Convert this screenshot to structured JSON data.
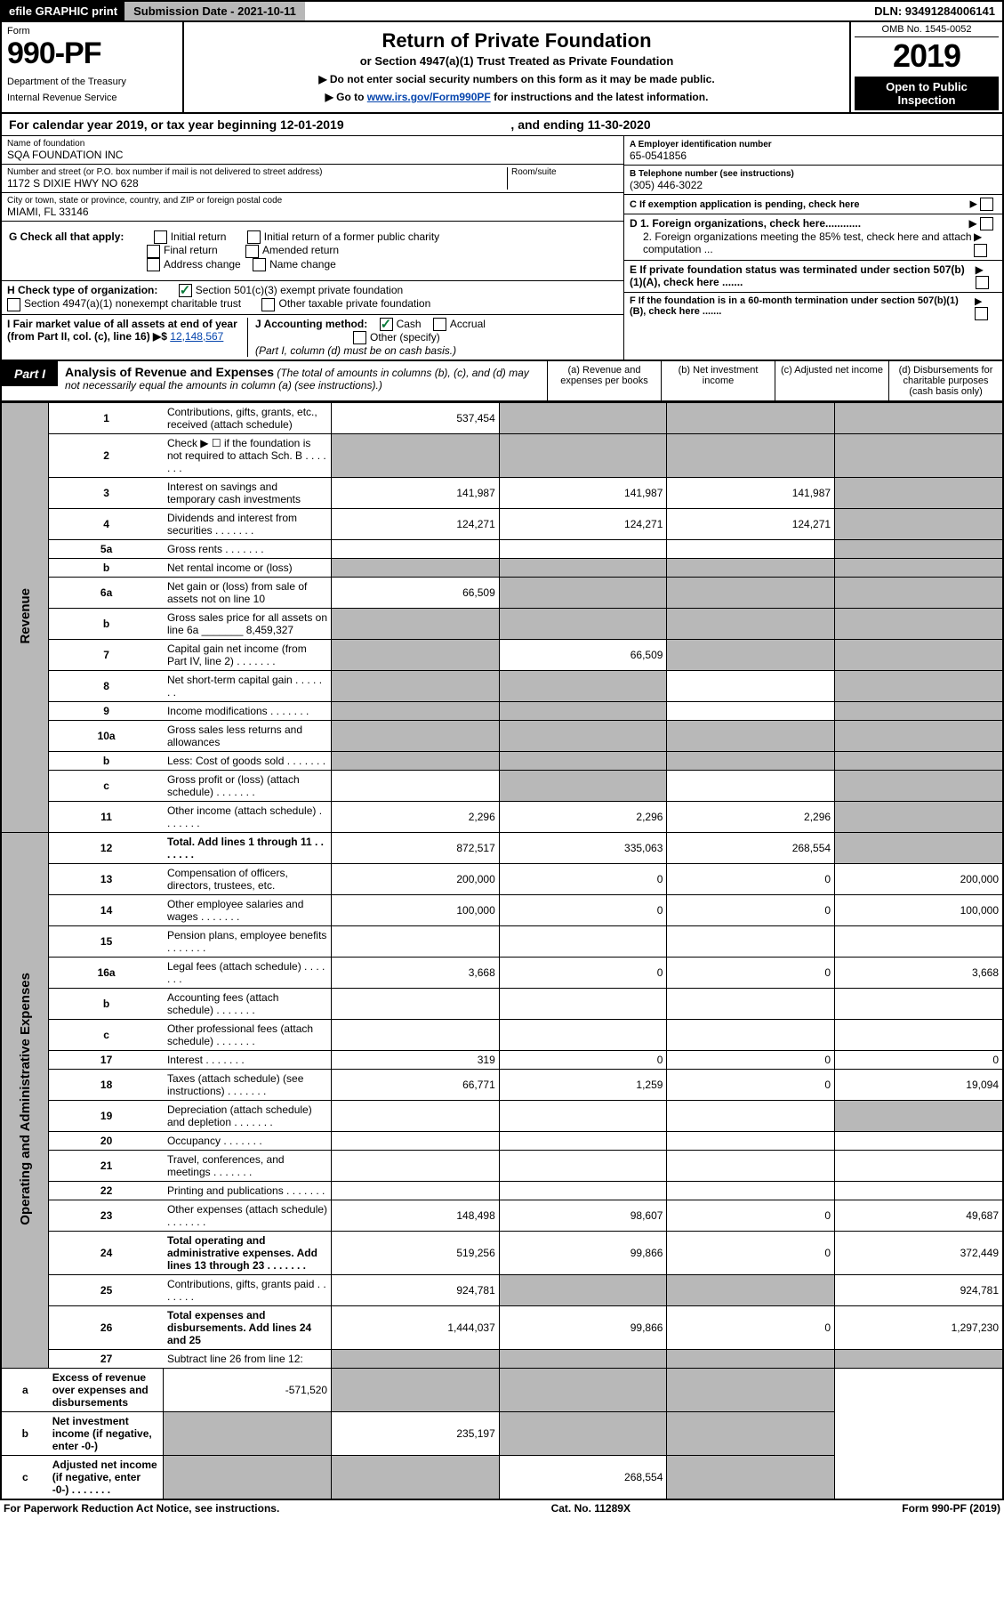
{
  "topbar": {
    "efile": "efile GRAPHIC print",
    "submission": "Submission Date - 2021-10-11",
    "dln": "DLN: 93491284006141"
  },
  "header": {
    "form_word": "Form",
    "form_number": "990-PF",
    "dept": "Department of the Treasury",
    "irs": "Internal Revenue Service",
    "title": "Return of Private Foundation",
    "subtitle": "or Section 4947(a)(1) Trust Treated as Private Foundation",
    "instr1": "▶ Do not enter social security numbers on this form as it may be made public.",
    "instr2_pre": "▶ Go to ",
    "instr2_link": "www.irs.gov/Form990PF",
    "instr2_post": " for instructions and the latest information.",
    "omb": "OMB No. 1545-0052",
    "year": "2019",
    "openpub": "Open to Public Inspection"
  },
  "calendar": {
    "text_pre": "For calendar year 2019, or tax year beginning ",
    "begin": "12-01-2019",
    "text_mid": " , and ending ",
    "end": "11-30-2020"
  },
  "info": {
    "name_label": "Name of foundation",
    "name": "SQA FOUNDATION INC",
    "addr_label": "Number and street (or P.O. box number if mail is not delivered to street address)",
    "addr": "1172 S DIXIE HWY NO 628",
    "room_label": "Room/suite",
    "city_label": "City or town, state or province, country, and ZIP or foreign postal code",
    "city": "MIAMI, FL  33146",
    "ein_label": "A Employer identification number",
    "ein": "65-0541856",
    "tel_label": "B Telephone number (see instructions)",
    "tel": "(305) 446-3022",
    "c_label": "C If exemption application is pending, check here",
    "d1": "D 1. Foreign organizations, check here............",
    "d2": "2. Foreign organizations meeting the 85% test, check here and attach computation ...",
    "e_label": "E  If private foundation status was terminated under section 507(b)(1)(A), check here .......",
    "f_label": "F  If the foundation is in a 60-month termination under section 507(b)(1)(B), check here .......",
    "g_label": "G Check all that apply:",
    "g_opts": [
      "Initial return",
      "Initial return of a former public charity",
      "Final return",
      "Amended return",
      "Address change",
      "Name change"
    ],
    "h_label": "H Check type of organization:",
    "h_opts": [
      "Section 501(c)(3) exempt private foundation",
      "Section 4947(a)(1) nonexempt charitable trust",
      "Other taxable private foundation"
    ],
    "i_label": "I Fair market value of all assets at end of year (from Part II, col. (c), line 16) ▶$ ",
    "i_val": "12,148,567",
    "j_label": "J Accounting method:",
    "j_opts": [
      "Cash",
      "Accrual",
      "Other (specify)"
    ],
    "j_note": "(Part I, column (d) must be on cash basis.)"
  },
  "part1": {
    "label": "Part I",
    "title": "Analysis of Revenue and Expenses",
    "note": "(The total of amounts in columns (b), (c), and (d) may not necessarily equal the amounts in column (a) (see instructions).)",
    "cols": [
      "(a) Revenue and expenses per books",
      "(b) Net investment income",
      "(c) Adjusted net income",
      "(d) Disbursements for charitable purposes (cash basis only)"
    ]
  },
  "rows": [
    {
      "n": "1",
      "desc": "Contributions, gifts, grants, etc., received (attach schedule)",
      "a": "537,454",
      "b_grey": true,
      "c_grey": true,
      "d_grey": true
    },
    {
      "n": "2",
      "desc": "Check ▶ ☐ if the foundation is not required to attach Sch. B",
      "dots": true,
      "a_grey": true,
      "b_grey": true,
      "c_grey": true,
      "d_grey": true
    },
    {
      "n": "3",
      "desc": "Interest on savings and temporary cash investments",
      "a": "141,987",
      "b": "141,987",
      "c": "141,987",
      "d_grey": true
    },
    {
      "n": "4",
      "desc": "Dividends and interest from securities",
      "dots": true,
      "a": "124,271",
      "b": "124,271",
      "c": "124,271",
      "d_grey": true
    },
    {
      "n": "5a",
      "desc": "Gross rents",
      "dots": true,
      "d_grey": true
    },
    {
      "n": "b",
      "desc": "Net rental income or (loss)",
      "a_grey": true,
      "b_grey": true,
      "c_grey": true,
      "d_grey": true
    },
    {
      "n": "6a",
      "desc": "Net gain or (loss) from sale of assets not on line 10",
      "a": "66,509",
      "b_grey": true,
      "c_grey": true,
      "d_grey": true
    },
    {
      "n": "b",
      "desc": "Gross sales price for all assets on line 6a _______ 8,459,327",
      "a_grey": true,
      "b_grey": true,
      "c_grey": true,
      "d_grey": true
    },
    {
      "n": "7",
      "desc": "Capital gain net income (from Part IV, line 2)",
      "dots": true,
      "a_grey": true,
      "b": "66,509",
      "c_grey": true,
      "d_grey": true
    },
    {
      "n": "8",
      "desc": "Net short-term capital gain",
      "dots": true,
      "a_grey": true,
      "b_grey": true,
      "d_grey": true
    },
    {
      "n": "9",
      "desc": "Income modifications",
      "dots": true,
      "a_grey": true,
      "b_grey": true,
      "d_grey": true
    },
    {
      "n": "10a",
      "desc": "Gross sales less returns and allowances",
      "a_grey": true,
      "b_grey": true,
      "c_grey": true,
      "d_grey": true
    },
    {
      "n": "b",
      "desc": "Less: Cost of goods sold",
      "dots": true,
      "a_grey": true,
      "b_grey": true,
      "c_grey": true,
      "d_grey": true
    },
    {
      "n": "c",
      "desc": "Gross profit or (loss) (attach schedule)",
      "dots": true,
      "b_grey": true,
      "d_grey": true
    },
    {
      "n": "11",
      "desc": "Other income (attach schedule)",
      "dots": true,
      "a": "2,296",
      "b": "2,296",
      "c": "2,296",
      "d_grey": true
    },
    {
      "n": "12",
      "desc": "Total. Add lines 1 through 11",
      "bold": true,
      "dots": true,
      "a": "872,517",
      "b": "335,063",
      "c": "268,554",
      "d_grey": true
    },
    {
      "n": "13",
      "desc": "Compensation of officers, directors, trustees, etc.",
      "a": "200,000",
      "b": "0",
      "c": "0",
      "d": "200,000"
    },
    {
      "n": "14",
      "desc": "Other employee salaries and wages",
      "dots": true,
      "a": "100,000",
      "b": "0",
      "c": "0",
      "d": "100,000"
    },
    {
      "n": "15",
      "desc": "Pension plans, employee benefits",
      "dots": true
    },
    {
      "n": "16a",
      "desc": "Legal fees (attach schedule)",
      "dots": true,
      "a": "3,668",
      "b": "0",
      "c": "0",
      "d": "3,668"
    },
    {
      "n": "b",
      "desc": "Accounting fees (attach schedule)",
      "dots": true
    },
    {
      "n": "c",
      "desc": "Other professional fees (attach schedule)",
      "dots": true
    },
    {
      "n": "17",
      "desc": "Interest",
      "dots": true,
      "a": "319",
      "b": "0",
      "c": "0",
      "d": "0"
    },
    {
      "n": "18",
      "desc": "Taxes (attach schedule) (see instructions)",
      "dots": true,
      "a": "66,771",
      "b": "1,259",
      "c": "0",
      "d": "19,094"
    },
    {
      "n": "19",
      "desc": "Depreciation (attach schedule) and depletion",
      "dots": true,
      "d_grey": true
    },
    {
      "n": "20",
      "desc": "Occupancy",
      "dots": true
    },
    {
      "n": "21",
      "desc": "Travel, conferences, and meetings",
      "dots": true
    },
    {
      "n": "22",
      "desc": "Printing and publications",
      "dots": true
    },
    {
      "n": "23",
      "desc": "Other expenses (attach schedule)",
      "dots": true,
      "a": "148,498",
      "b": "98,607",
      "c": "0",
      "d": "49,687"
    },
    {
      "n": "24",
      "desc": "Total operating and administrative expenses. Add lines 13 through 23",
      "bold": true,
      "dots": true,
      "a": "519,256",
      "b": "99,866",
      "c": "0",
      "d": "372,449"
    },
    {
      "n": "25",
      "desc": "Contributions, gifts, grants paid",
      "dots": true,
      "a": "924,781",
      "b_grey": true,
      "c_grey": true,
      "d": "924,781"
    },
    {
      "n": "26",
      "desc": "Total expenses and disbursements. Add lines 24 and 25",
      "bold": true,
      "a": "1,444,037",
      "b": "99,866",
      "c": "0",
      "d": "1,297,230"
    },
    {
      "n": "27",
      "desc": "Subtract line 26 from line 12:",
      "a_grey": true,
      "b_grey": true,
      "c_grey": true,
      "d_grey": true
    },
    {
      "n": "a",
      "desc": "Excess of revenue over expenses and disbursements",
      "bold": true,
      "a": "-571,520",
      "b_grey": true,
      "c_grey": true,
      "d_grey": true
    },
    {
      "n": "b",
      "desc": "Net investment income (if negative, enter -0-)",
      "bold": true,
      "a_grey": true,
      "b": "235,197",
      "c_grey": true,
      "d_grey": true
    },
    {
      "n": "c",
      "desc": "Adjusted net income (if negative, enter -0-)",
      "bold": true,
      "dots": true,
      "a_grey": true,
      "b_grey": true,
      "c": "268,554",
      "d_grey": true
    }
  ],
  "sidebar": {
    "revenue": "Revenue",
    "expenses": "Operating and Administrative Expenses"
  },
  "revenue_span": 15,
  "expenses_span": 18,
  "footer": {
    "left": "For Paperwork Reduction Act Notice, see instructions.",
    "mid": "Cat. No. 11289X",
    "right": "Form 990-PF (2019)"
  }
}
